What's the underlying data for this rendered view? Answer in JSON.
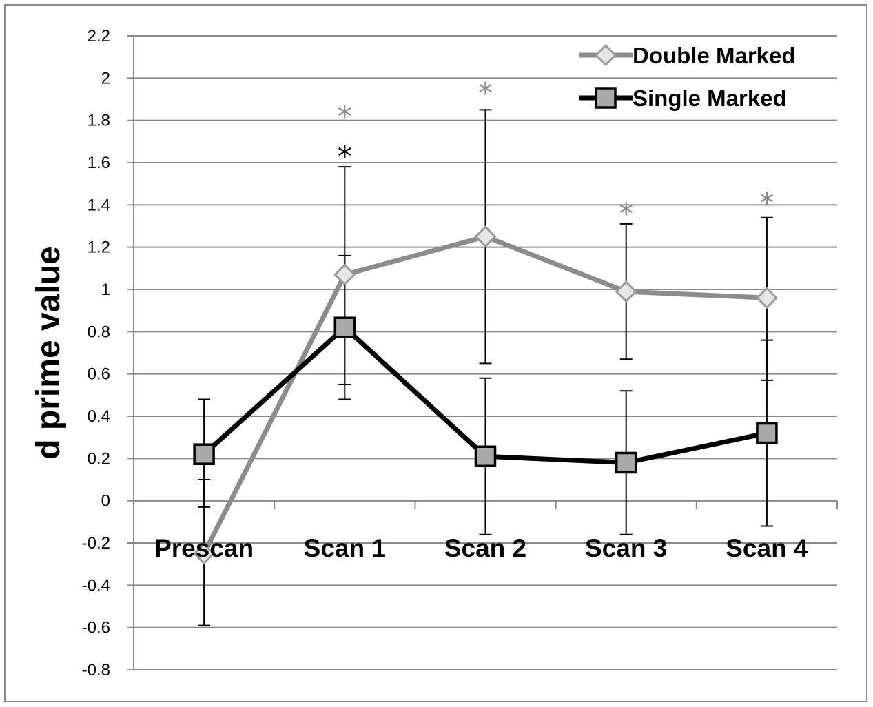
{
  "chart_data": {
    "type": "line",
    "categories": [
      "Prescan",
      "Scan 1",
      "Scan 2",
      "Scan 3",
      "Scan 4"
    ],
    "ylabel": "d prime value",
    "xlabel": "",
    "title": "",
    "ylim": [
      -0.8,
      2.2
    ],
    "ytick_step": 0.2,
    "yticks": [
      "-0.8",
      "-0.6",
      "-0.4",
      "-0.2",
      "0",
      "0.2",
      "0.4",
      "0.6",
      "0.8",
      "1",
      "1.2",
      "1.4",
      "1.6",
      "1.8",
      "2",
      "2.2"
    ],
    "grid": true,
    "legend": "top-right",
    "series": [
      {
        "name": "Double Marked",
        "color": "#8c8c8c",
        "marker": "diamond",
        "values": [
          -0.25,
          1.07,
          1.25,
          0.99,
          0.96
        ],
        "err_low": [
          -0.59,
          0.55,
          0.65,
          0.67,
          0.57
        ],
        "err_high": [
          0.1,
          1.58,
          1.85,
          1.31,
          1.34
        ]
      },
      {
        "name": "Single Marked",
        "color": "#000000",
        "marker": "square",
        "values": [
          0.22,
          0.82,
          0.21,
          0.18,
          0.32
        ],
        "err_low": [
          -0.03,
          0.48,
          -0.16,
          -0.16,
          -0.12
        ],
        "err_high": [
          0.48,
          1.16,
          0.58,
          0.52,
          0.76
        ]
      }
    ],
    "annotations": [
      {
        "text": "*",
        "category": "Scan 1",
        "y": 1.85,
        "color": "#8c8c8c"
      },
      {
        "text": "*",
        "category": "Scan 1",
        "y": 1.66,
        "color": "#000000"
      },
      {
        "text": "*",
        "category": "Scan 2",
        "y": 1.96,
        "color": "#8c8c8c"
      },
      {
        "text": "*",
        "category": "Scan 3",
        "y": 1.39,
        "color": "#8c8c8c"
      },
      {
        "text": "*",
        "category": "Scan 4",
        "y": 1.44,
        "color": "#8c8c8c"
      }
    ]
  }
}
